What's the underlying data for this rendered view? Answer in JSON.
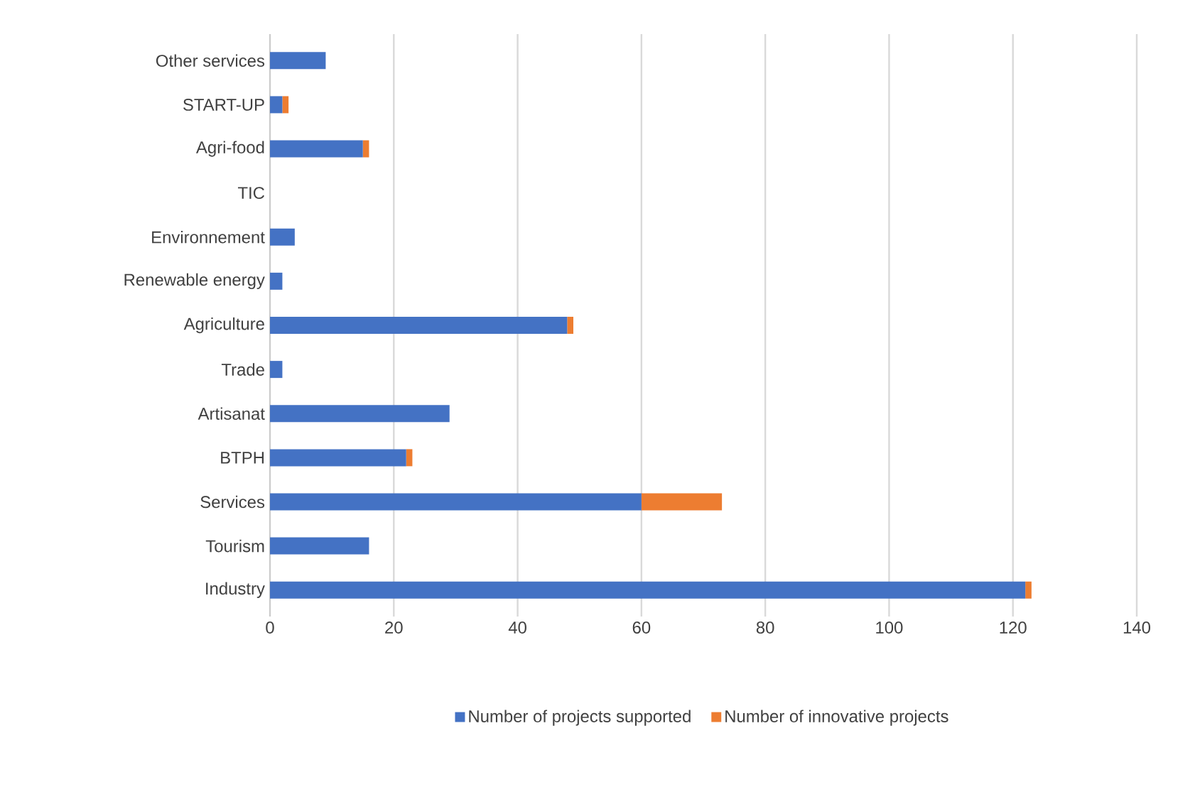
{
  "chart_data": {
    "type": "bar",
    "orientation": "horizontal",
    "stacked": true,
    "categories": [
      "Other services",
      "START-UP",
      "Agri-food",
      "TIC",
      "Environnement",
      "Renewable energy",
      "Agriculture",
      "Trade",
      "Artisanat",
      "BTPH",
      "Services",
      "Tourism",
      "Industry"
    ],
    "series": [
      {
        "name": "Number of projects supported",
        "color": "#4472c4",
        "values": [
          9,
          2,
          15,
          0,
          4,
          2,
          48,
          2,
          29,
          22,
          60,
          16,
          122
        ]
      },
      {
        "name": "Number of innovative projects",
        "color": "#ed7d31",
        "values": [
          0,
          1,
          1,
          0,
          0,
          0,
          1,
          0,
          0,
          1,
          13,
          0,
          1
        ]
      }
    ],
    "xlim": [
      0,
      140
    ],
    "xticks": [
      0,
      20,
      40,
      60,
      80,
      100,
      120,
      140
    ],
    "grid": "x",
    "legend": "bottom"
  }
}
